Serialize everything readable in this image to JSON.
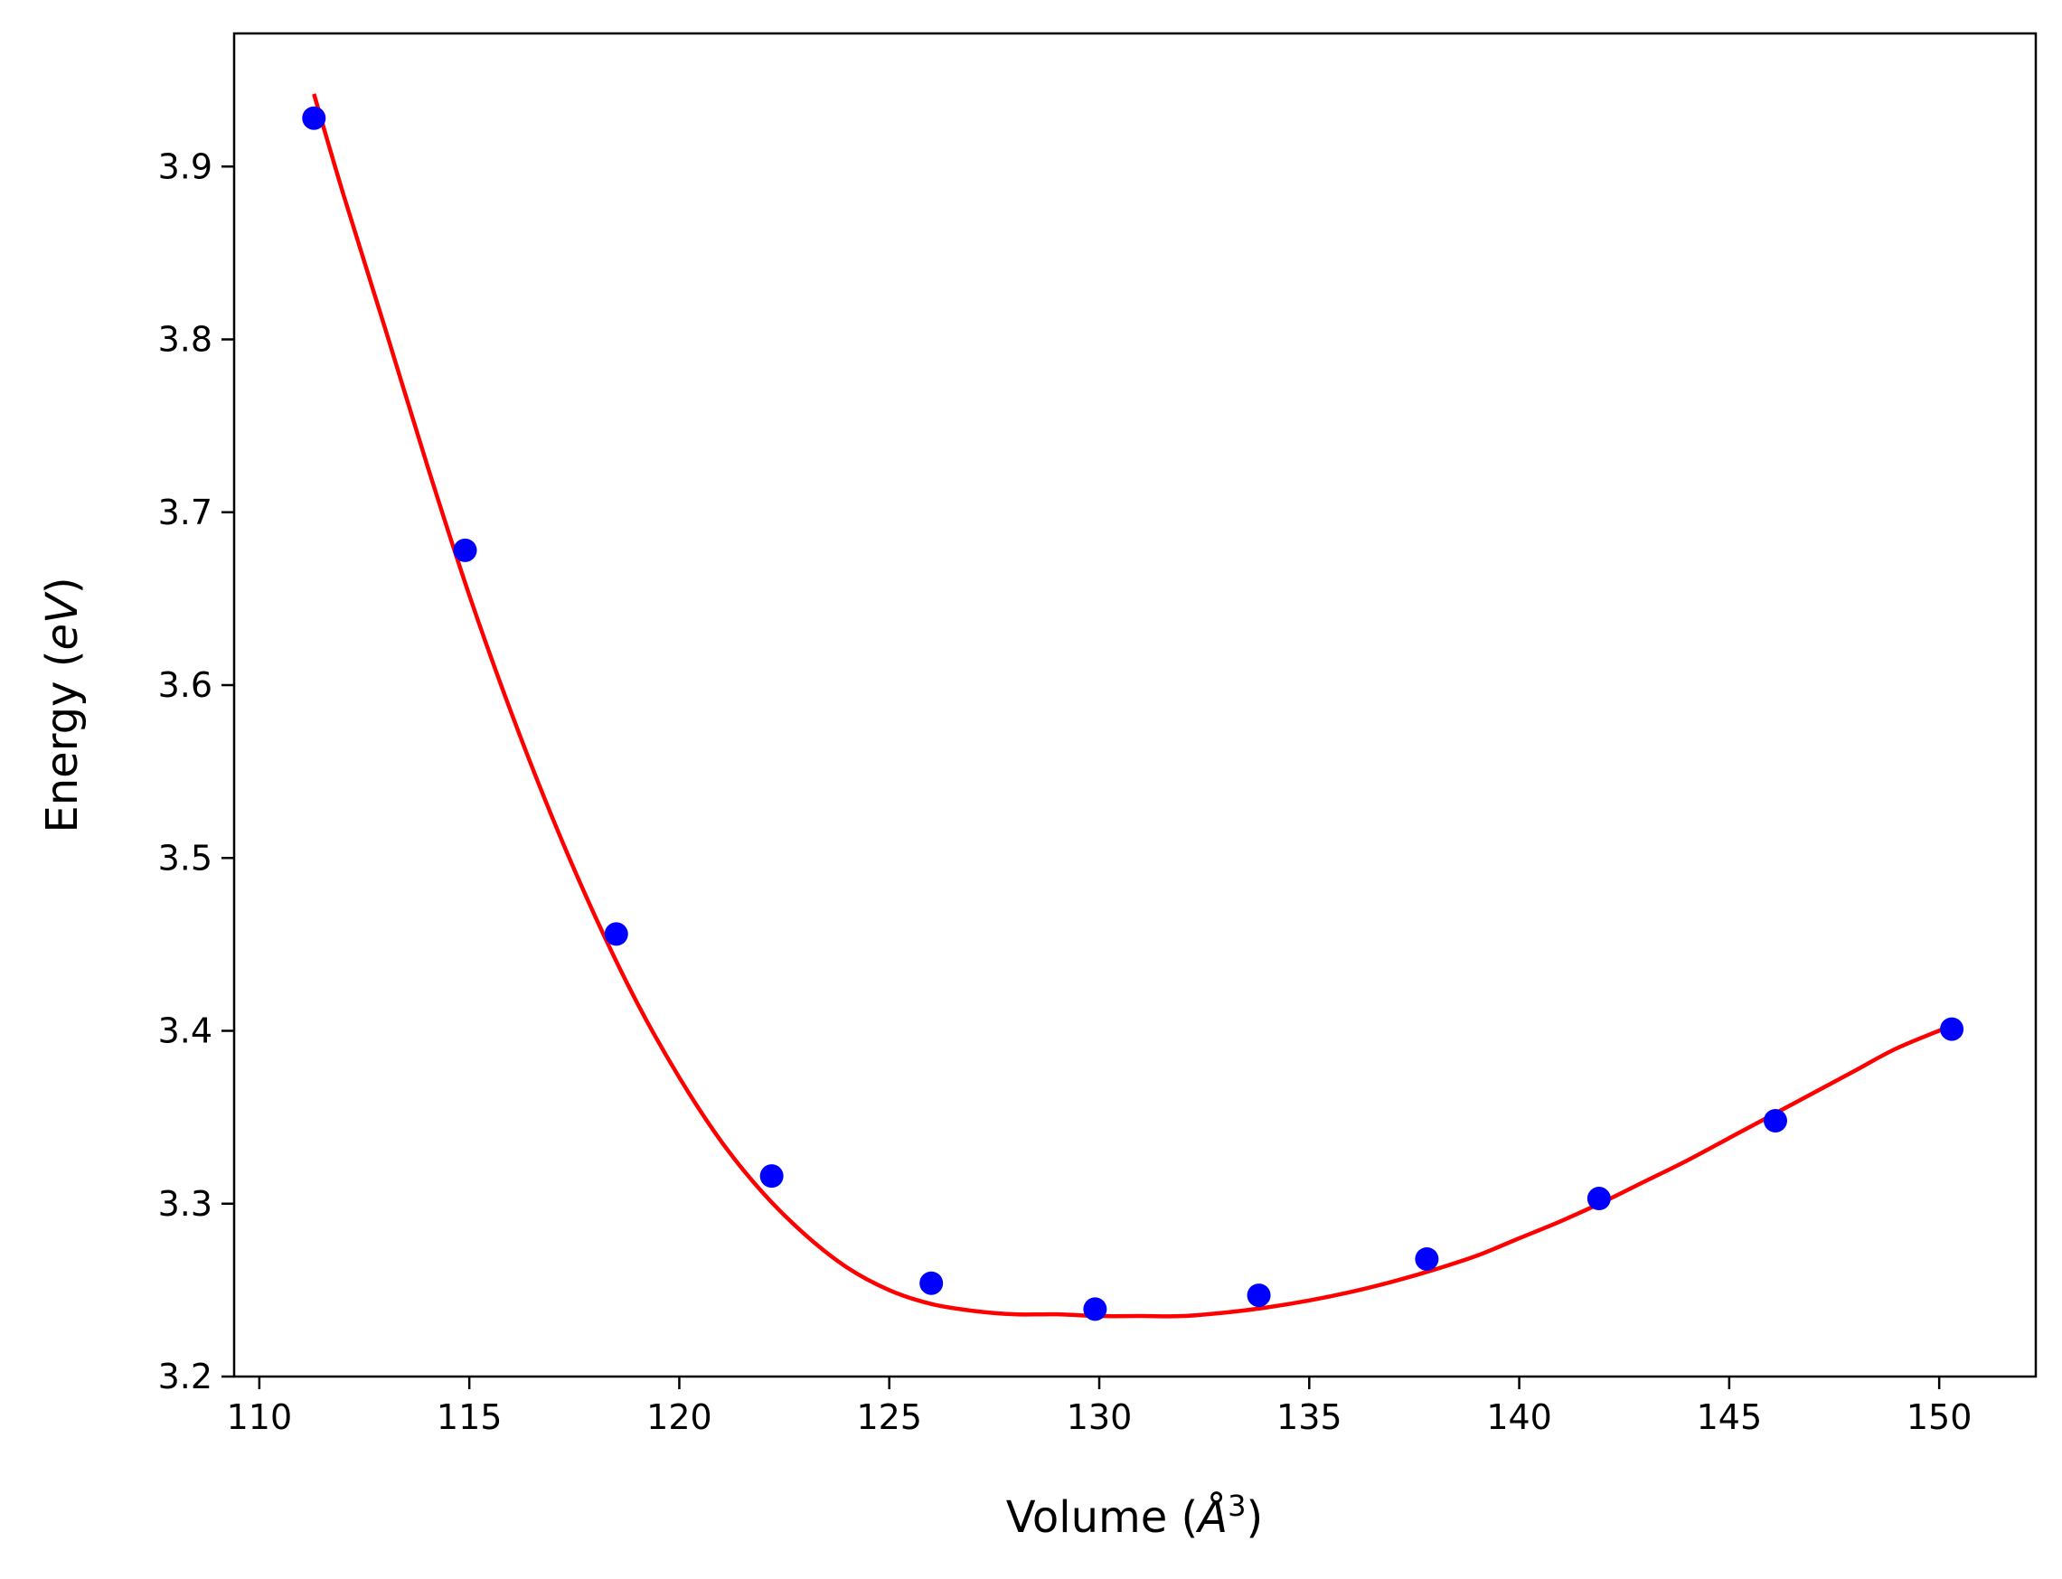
{
  "chart_data": {
    "type": "scatter",
    "xlabel_prefix": "Volume (",
    "xlabel_unit": "Å",
    "xlabel_exp": "3",
    "xlabel_suffix": ")",
    "ylabel_prefix": "Energy (",
    "ylabel_unit": "eV",
    "ylabel_suffix": ")",
    "xlim": [
      109.4,
      152.3
    ],
    "ylim": [
      3.2,
      3.977
    ],
    "xticks": [
      110,
      115,
      120,
      125,
      130,
      135,
      140,
      145,
      150
    ],
    "yticks": [
      3.2,
      3.3,
      3.4,
      3.5,
      3.6,
      3.7,
      3.8,
      3.9
    ],
    "grid": false,
    "legend": "none",
    "series": [
      {
        "kind": "points",
        "color": "#0000ff",
        "x": [
          111.3,
          114.9,
          118.5,
          122.2,
          126.0,
          129.9,
          133.8,
          137.8,
          141.9,
          146.1,
          150.3
        ],
        "y": [
          3.928,
          3.678,
          3.456,
          3.316,
          3.254,
          3.239,
          3.247,
          3.268,
          3.303,
          3.348,
          3.401
        ]
      },
      {
        "kind": "fit-curve",
        "color": "#ff0000",
        "x": [
          111.3,
          112.0,
          113.0,
          114.0,
          115.0,
          116.0,
          117.0,
          118.0,
          119.0,
          120.0,
          121.0,
          122.0,
          123.0,
          124.0,
          125.0,
          126.0,
          127.0,
          128.0,
          129.0,
          130.0,
          131.0,
          132.0,
          133.0,
          134.0,
          135.0,
          136.0,
          137.0,
          138.0,
          139.0,
          140.0,
          141.0,
          142.0,
          143.0,
          144.0,
          145.0,
          146.0,
          147.0,
          148.0,
          149.0,
          150.3
        ],
        "y": [
          3.942,
          3.884,
          3.806,
          3.727,
          3.652,
          3.584,
          3.522,
          3.466,
          3.416,
          3.373,
          3.336,
          3.306,
          3.282,
          3.263,
          3.25,
          3.242,
          3.238,
          3.236,
          3.236,
          3.235,
          3.235,
          3.235,
          3.237,
          3.24,
          3.244,
          3.249,
          3.255,
          3.262,
          3.27,
          3.28,
          3.29,
          3.301,
          3.313,
          3.325,
          3.338,
          3.351,
          3.364,
          3.377,
          3.39,
          3.403
        ]
      }
    ]
  }
}
